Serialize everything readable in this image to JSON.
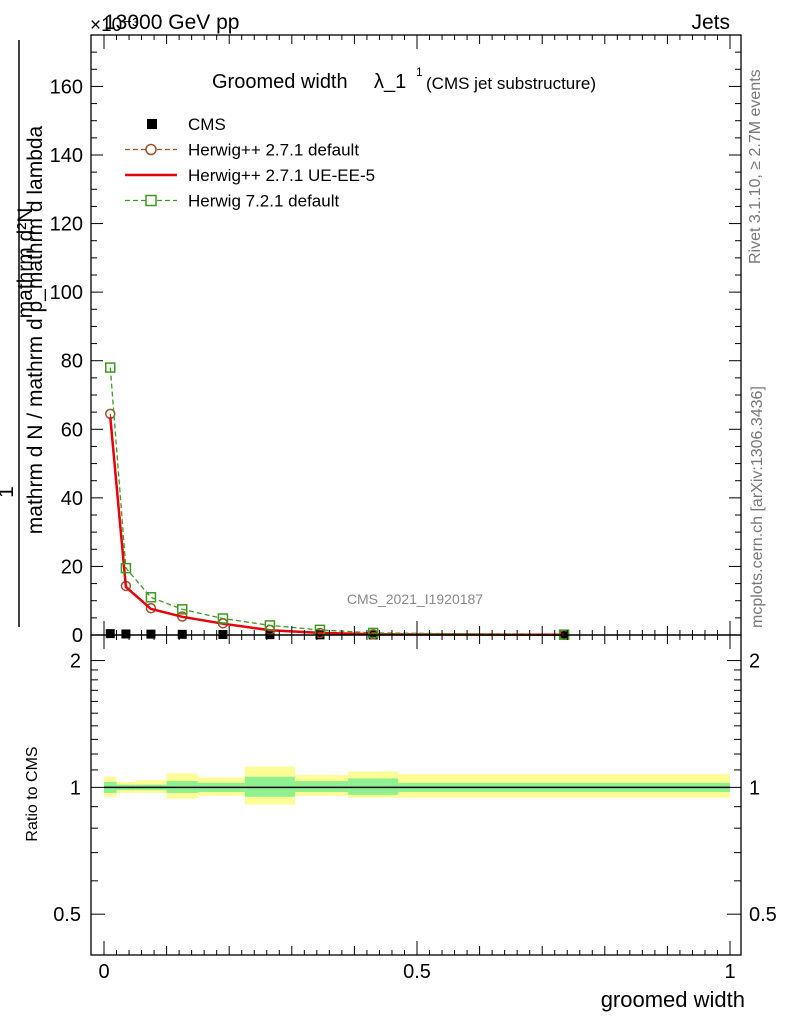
{
  "header": {
    "left": "13000 GeV pp",
    "right": "Jets",
    "multiplier": "×10⁻³"
  },
  "side_labels": {
    "rivet": "Rivet 3.1.10, ≥ 2.7M events",
    "mcplots": "mcplots.cern.ch [arXiv:1306.3436]"
  },
  "watermark": "CMS_2021_I1920187",
  "chart_data": [
    {
      "type": "line",
      "title_main": "Groomed width",
      "title_symbol": "λ_1",
      "title_sup": "1",
      "title_sub": "(CMS jet substructure)",
      "ylabel_num": "mathrm d²N",
      "ylabel_den": "mathrm d p_mathrm d lambda",
      "ylabel_den2": "mathrm d N / mathrm d p_mathrm d lambda",
      "ylabel_one": "1",
      "xlim": [
        0,
        1
      ],
      "ylim": [
        0,
        175
      ],
      "y_ticks": [
        0,
        20,
        40,
        60,
        80,
        100,
        120,
        140,
        160
      ],
      "x_ticks": [
        0,
        0.5,
        1
      ],
      "x_tick_labels": [
        "0",
        "0.5",
        "1"
      ],
      "legend_position": "top-left",
      "series": [
        {
          "name": "CMS",
          "style": "marker-square",
          "color": "#000000",
          "x": [
            0.01,
            0.035,
            0.075,
            0.125,
            0.19,
            0.265,
            0.345,
            0.43,
            0.735
          ],
          "y": [
            0.4,
            0.3,
            0.25,
            0.2,
            0.15,
            0.1,
            0.05,
            0.02,
            0.005
          ]
        },
        {
          "name": "Herwig++ 2.7.1 default",
          "style": "dashed-circle",
          "color": "#a0522d",
          "x": [
            0.01,
            0.035,
            0.075,
            0.125,
            0.19,
            0.265,
            0.345,
            0.43,
            0.735
          ],
          "y": [
            64.5,
            14.3,
            7.8,
            5.4,
            3.4,
            1.5,
            0.6,
            0.2,
            0.05
          ]
        },
        {
          "name": "Herwig++ 2.7.1 UE-EE-5",
          "style": "solid",
          "color": "#e8000b",
          "x": [
            0.01,
            0.035,
            0.075,
            0.125,
            0.19,
            0.265,
            0.345,
            0.43,
            0.735
          ],
          "y": [
            63.5,
            14.0,
            7.6,
            5.3,
            3.3,
            1.4,
            0.6,
            0.2,
            0.05
          ]
        },
        {
          "name": "Herwig 7.2.1 default",
          "style": "dashed-square",
          "color": "#3e9a1f",
          "x": [
            0.01,
            0.035,
            0.075,
            0.125,
            0.19,
            0.265,
            0.345,
            0.43,
            0.735
          ],
          "y": [
            78.0,
            19.5,
            11.0,
            7.5,
            4.8,
            2.8,
            1.5,
            0.6,
            0.1
          ]
        }
      ]
    },
    {
      "type": "area",
      "ylabel": "Ratio to CMS",
      "xlabel": "groomed width",
      "xlim": [
        0,
        1
      ],
      "ylim": [
        0.4,
        2.3
      ],
      "log_y": true,
      "y_ticks": [
        0.5,
        1,
        2
      ],
      "y_tick_labels": [
        "0.5",
        "1",
        "2"
      ],
      "reference_line": 1,
      "band_colors": {
        "inner": "#8ff08f",
        "outer": "#fdfd96"
      },
      "bins": [
        {
          "x": [
            0.0,
            0.02
          ],
          "inner": [
            0.97,
            1.03
          ],
          "outer": [
            0.95,
            1.06
          ]
        },
        {
          "x": [
            0.02,
            0.05
          ],
          "inner": [
            0.985,
            1.015
          ],
          "outer": [
            0.97,
            1.03
          ]
        },
        {
          "x": [
            0.05,
            0.1
          ],
          "inner": [
            0.985,
            1.015
          ],
          "outer": [
            0.97,
            1.04
          ]
        },
        {
          "x": [
            0.1,
            0.15
          ],
          "inner": [
            0.97,
            1.035
          ],
          "outer": [
            0.94,
            1.08
          ]
        },
        {
          "x": [
            0.15,
            0.225
          ],
          "inner": [
            0.975,
            1.025
          ],
          "outer": [
            0.955,
            1.055
          ]
        },
        {
          "x": [
            0.225,
            0.305
          ],
          "inner": [
            0.95,
            1.06
          ],
          "outer": [
            0.91,
            1.12
          ]
        },
        {
          "x": [
            0.305,
            0.39
          ],
          "inner": [
            0.975,
            1.035
          ],
          "outer": [
            0.955,
            1.07
          ]
        },
        {
          "x": [
            0.39,
            0.47
          ],
          "inner": [
            0.96,
            1.05
          ],
          "outer": [
            0.945,
            1.09
          ]
        },
        {
          "x": [
            0.47,
            1.0
          ],
          "inner": [
            0.975,
            1.025
          ],
          "outer": [
            0.945,
            1.075
          ]
        }
      ]
    }
  ]
}
